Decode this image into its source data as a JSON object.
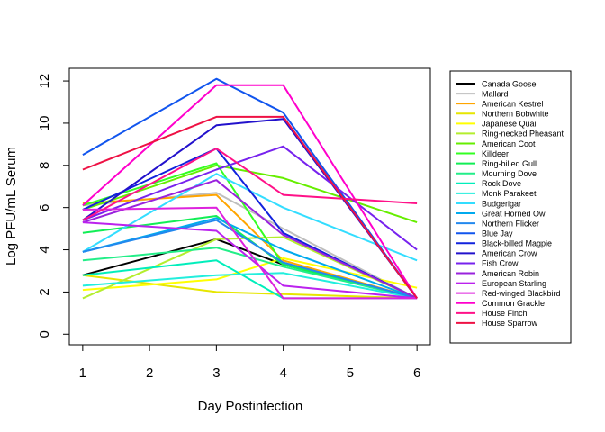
{
  "chart_data": {
    "type": "line",
    "xlabel": "Day Postinfection",
    "ylabel": "Log PFU/mL Serum",
    "x": [
      1,
      3,
      4,
      6
    ],
    "x_ticks": [
      1,
      2,
      3,
      4,
      5,
      6
    ],
    "y_ticks": [
      0,
      2,
      4,
      6,
      8,
      10,
      12
    ],
    "xlim": [
      0.8,
      6.2
    ],
    "ylim": [
      -0.5,
      12.6
    ],
    "legend_position": "right",
    "series": [
      {
        "name": "Canada Goose",
        "color": "#000000",
        "values": [
          2.8,
          4.5,
          3.3,
          1.7
        ]
      },
      {
        "name": "Mallard",
        "color": "#bebebe",
        "values": [
          6.1,
          6.7,
          5.0,
          1.7
        ]
      },
      {
        "name": "American Kestrel",
        "color": "#ffa500",
        "values": [
          6.2,
          6.6,
          3.5,
          1.7
        ]
      },
      {
        "name": "Northern Bobwhite",
        "color": "#e6e600",
        "values": [
          2.8,
          2.0,
          1.9,
          1.7
        ]
      },
      {
        "name": "Japanese Quail",
        "color": "#ffff00",
        "values": [
          2.1,
          2.6,
          3.6,
          2.2
        ]
      },
      {
        "name": "Ring-necked Pheasant",
        "color": "#b4ee2e",
        "values": [
          1.7,
          4.5,
          4.6,
          1.7
        ]
      },
      {
        "name": "American Coot",
        "color": "#66ee00",
        "values": [
          5.9,
          8.0,
          7.4,
          5.3
        ]
      },
      {
        "name": "Killdeer",
        "color": "#33ff22",
        "values": [
          6.1,
          8.1,
          3.3,
          1.7
        ]
      },
      {
        "name": "Ring-billed Gull",
        "color": "#11ee55",
        "values": [
          4.8,
          5.6,
          3.3,
          1.7
        ]
      },
      {
        "name": "Mourning Dove",
        "color": "#22ee88",
        "values": [
          3.5,
          4.1,
          3.2,
          1.7
        ]
      },
      {
        "name": "Rock Dove",
        "color": "#00eebb",
        "values": [
          2.8,
          3.5,
          1.7,
          1.7
        ]
      },
      {
        "name": "Monk Parakeet",
        "color": "#22eedd",
        "values": [
          2.3,
          2.8,
          2.9,
          1.7
        ]
      },
      {
        "name": "Budgerigar",
        "color": "#33ddff",
        "values": [
          3.9,
          7.6,
          6.0,
          3.5
        ]
      },
      {
        "name": "Great Horned Owl",
        "color": "#00aaee",
        "values": [
          3.9,
          5.5,
          4.0,
          1.7
        ]
      },
      {
        "name": "Northern Flicker",
        "color": "#2288ee",
        "values": [
          3.9,
          5.4,
          3.4,
          1.7
        ]
      },
      {
        "name": "Blue Jay",
        "color": "#1155ee",
        "values": [
          8.5,
          12.1,
          10.5,
          1.7
        ]
      },
      {
        "name": "Black-billed Magpie",
        "color": "#1122dd",
        "values": [
          5.9,
          8.8,
          4.8,
          1.7
        ]
      },
      {
        "name": "American Crow",
        "color": "#2211cc",
        "values": [
          5.4,
          9.9,
          10.2,
          1.7
        ]
      },
      {
        "name": "Fish Crow",
        "color": "#7722ee",
        "values": [
          5.4,
          7.8,
          8.9,
          4.0
        ]
      },
      {
        "name": "American Robin",
        "color": "#9922dd",
        "values": [
          5.3,
          7.3,
          4.7,
          1.7
        ]
      },
      {
        "name": "European Starling",
        "color": "#bb22ee",
        "values": [
          5.3,
          4.9,
          2.3,
          1.7
        ]
      },
      {
        "name": "Red-winged Blackbird",
        "color": "#dd22dd",
        "values": [
          5.9,
          6.0,
          1.7,
          1.7
        ]
      },
      {
        "name": "Common Grackle",
        "color": "#ff00cc",
        "values": [
          6.1,
          11.8,
          11.8,
          1.7
        ]
      },
      {
        "name": "House Finch",
        "color": "#ff1188",
        "values": [
          5.4,
          8.8,
          6.6,
          6.2
        ]
      },
      {
        "name": "House Sparrow",
        "color": "#ee1144",
        "values": [
          7.8,
          10.3,
          10.3,
          1.7
        ]
      }
    ]
  }
}
